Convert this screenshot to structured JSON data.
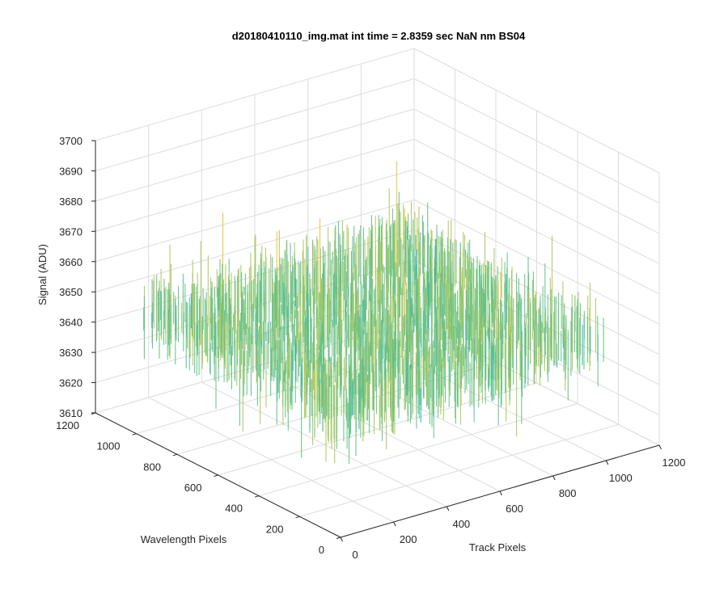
{
  "chart_data": {
    "type": "surface",
    "title": "d20180410110_img.mat int time = 2.8359 sec  NaN nm BS04",
    "xlabel": "Track Pixels",
    "ylabel": "Wavelength Pixels",
    "zlabel": "Signal (ADU)",
    "xlim": [
      0,
      1200
    ],
    "ylim": [
      0,
      1200
    ],
    "zlim": [
      3610,
      3700
    ],
    "x_ticks": [
      "0",
      "200",
      "400",
      "600",
      "800",
      "1000",
      "1200"
    ],
    "y_ticks": [
      "0",
      "200",
      "400",
      "600",
      "800",
      "1000",
      "1200"
    ],
    "z_ticks": [
      "3610",
      "3620",
      "3630",
      "3640",
      "3650",
      "3660",
      "3670",
      "3680",
      "3690",
      "3700"
    ],
    "grid": true,
    "data_extent": {
      "x": [
        0,
        1024
      ],
      "y": [
        0,
        1024
      ]
    },
    "signal_mean": 3650,
    "signal_range": [
      3600,
      3695
    ],
    "colormap": [
      "#0072bd",
      "#1394d4",
      "#22b0b8",
      "#5fc089",
      "#a8c85e",
      "#e8c33a"
    ]
  }
}
